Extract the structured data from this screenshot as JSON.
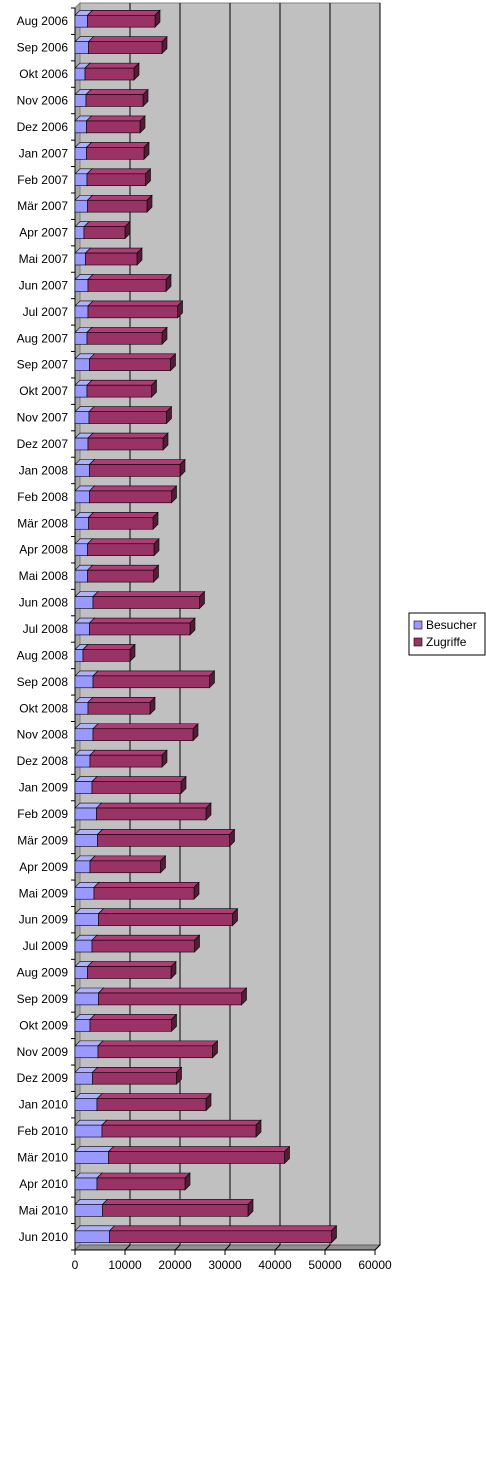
{
  "chart_data": {
    "type": "bar",
    "orientation": "horizontal",
    "stacked": true,
    "style": "3d",
    "categories": [
      "Aug 2006",
      "Sep 2006",
      "Okt 2006",
      "Nov 2006",
      "Dez 2006",
      "Jan 2007",
      "Feb 2007",
      "Mär 2007",
      "Apr 2007",
      "Mai 2007",
      "Jun 2007",
      "Jul 2007",
      "Aug 2007",
      "Sep 2007",
      "Okt 2007",
      "Nov 2007",
      "Dez 2007",
      "Jan 2008",
      "Feb 2008",
      "Mär 2008",
      "Apr 2008",
      "Mai 2008",
      "Jun 2008",
      "Jul 2008",
      "Aug 2008",
      "Sep 2008",
      "Okt 2008",
      "Nov 2008",
      "Dez 2008",
      "Jan 2009",
      "Feb 2009",
      "Mär 2009",
      "Apr 2009",
      "Mai 2009",
      "Jun 2009",
      "Jul 2009",
      "Aug 2009",
      "Sep 2009",
      "Okt 2009",
      "Nov 2009",
      "Dez 2009",
      "Jan 2010",
      "Feb 2010",
      "Mär 2010",
      "Apr 2010",
      "Mai 2010",
      "Jun 2010"
    ],
    "series": [
      {
        "name": "Besucher",
        "color": "#9999ff",
        "values": [
          2500,
          2700,
          2000,
          2200,
          2300,
          2300,
          2400,
          2500,
          1800,
          2100,
          2600,
          2600,
          2400,
          2900,
          2400,
          2800,
          2600,
          2900,
          2900,
          2700,
          2500,
          2500,
          3600,
          2900,
          1600,
          3600,
          2600,
          3600,
          3000,
          3400,
          4300,
          4500,
          3000,
          3800,
          4700,
          3400,
          2500,
          4700,
          3000,
          4600,
          3500,
          4400,
          5400,
          6700,
          4400,
          5500,
          6900
        ]
      },
      {
        "name": "Zugriffe",
        "color": "#993366",
        "values": [
          13500,
          14700,
          9800,
          11400,
          10700,
          11500,
          11700,
          11900,
          8200,
          10300,
          15600,
          17900,
          15000,
          16200,
          12900,
          15500,
          15000,
          18100,
          16400,
          12900,
          13300,
          13200,
          21300,
          20100,
          9400,
          23300,
          12400,
          20000,
          14400,
          17800,
          21900,
          26400,
          14100,
          20000,
          26800,
          20500,
          16700,
          28600,
          16300,
          22900,
          16800,
          21800,
          30800,
          35200,
          17600,
          29100,
          44400
        ]
      }
    ],
    "xlim": [
      0,
      60000
    ],
    "xticks": [
      "0",
      "10000",
      "20000",
      "30000",
      "40000",
      "50000",
      "60000"
    ],
    "grid": true,
    "legend": "right"
  }
}
